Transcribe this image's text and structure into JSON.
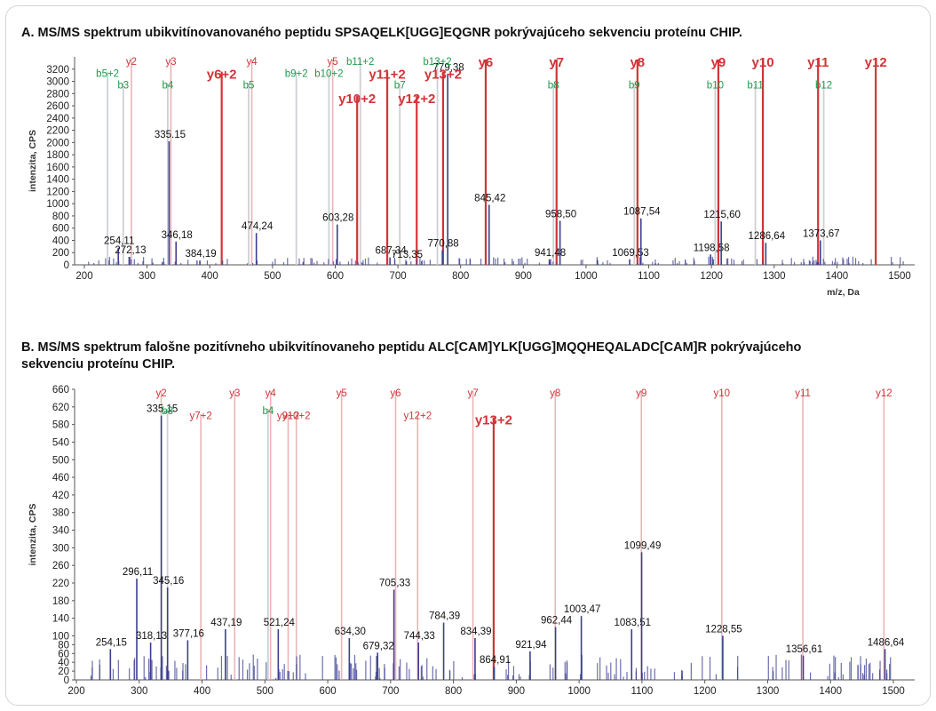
{
  "panel_a_title": "A. MS/MS spektrum ubikvitínovanovaného peptidu SPSAQELK[UGG]EQGNR pokrývajúceho sekvenciu proteínu CHIP.",
  "panel_b_title_line1": "B. MS/MS spektrum falošne pozitívneho ubikvitínovaneho peptidu ALC[CAM]YLK[UGG]MQQHEQALADC[CAM]R pokrývajúceho",
  "panel_b_title_line2": "sekvenciu proteínu CHIP.",
  "colors": {
    "ion_y": "#d13438",
    "ion_b": "#1f9a4a",
    "spectrum": "#3b3f8f",
    "axis": "#555555"
  },
  "chart_data": [
    {
      "type": "bar",
      "title": "A. MS/MS spektrum ubikvitínovanovaného peptidu SPSAQELK[UGG]EQGNR pokrývajúceho sekvenciu proteínu CHIP.",
      "xlabel": "m/z, Da",
      "ylabel": "intenzita, CPS",
      "xlim": [
        180,
        1520
      ],
      "ylim": [
        0,
        3400
      ],
      "xticks": [
        200,
        300,
        400,
        500,
        600,
        700,
        800,
        900,
        1000,
        1100,
        1200,
        1300,
        1400,
        1500
      ],
      "yticks": [
        0,
        200,
        400,
        600,
        800,
        1000,
        1200,
        1400,
        1600,
        1800,
        2000,
        2200,
        2400,
        2600,
        2800,
        3000,
        3200
      ],
      "fragment_ions": [
        {
          "label": "b5+2",
          "mz": 237,
          "ion": "b",
          "bold": false,
          "labelY": 3130
        },
        {
          "label": "b3",
          "mz": 262,
          "ion": "b",
          "bold": false,
          "labelY": 2940
        },
        {
          "label": "y2",
          "mz": 275,
          "ion": "y",
          "bold": false,
          "labelY": 3330
        },
        {
          "label": "b4",
          "mz": 333,
          "ion": "b",
          "bold": false,
          "labelY": 2940
        },
        {
          "label": "y3",
          "mz": 338,
          "ion": "y",
          "bold": false,
          "labelY": 3330
        },
        {
          "label": "y6+2",
          "mz": 419,
          "ion": "y",
          "bold": true,
          "labelY": 3130
        },
        {
          "label": "b5",
          "mz": 462,
          "ion": "b",
          "bold": false,
          "labelY": 2940
        },
        {
          "label": "y4",
          "mz": 467,
          "ion": "y",
          "bold": false,
          "labelY": 3330
        },
        {
          "label": "b9+2",
          "mz": 538,
          "ion": "b",
          "bold": false,
          "labelY": 3130
        },
        {
          "label": "b10+2",
          "mz": 590,
          "ion": "b",
          "bold": false,
          "labelY": 3130
        },
        {
          "label": "y5",
          "mz": 596,
          "ion": "y",
          "bold": false,
          "labelY": 3330
        },
        {
          "label": "b11+2",
          "mz": 640,
          "ion": "b",
          "bold": false,
          "labelY": 3330
        },
        {
          "label": "y10+2",
          "mz": 635,
          "ion": "y",
          "bold": true,
          "labelY": 2730
        },
        {
          "label": "y11+2",
          "mz": 683,
          "ion": "y",
          "bold": true,
          "labelY": 3130
        },
        {
          "label": "b7",
          "mz": 703,
          "ion": "b",
          "bold": false,
          "labelY": 2940
        },
        {
          "label": "y12+2",
          "mz": 730,
          "ion": "y",
          "bold": true,
          "labelY": 2730
        },
        {
          "label": "b13+2",
          "mz": 763,
          "ion": "b",
          "bold": false,
          "labelY": 3330
        },
        {
          "label": "y13+2",
          "mz": 772,
          "ion": "y",
          "bold": true,
          "labelY": 3130
        },
        {
          "label": "y6",
          "mz": 840,
          "ion": "y",
          "bold": true,
          "labelY": 3330
        },
        {
          "label": "b8",
          "mz": 948,
          "ion": "b",
          "bold": false,
          "labelY": 2940
        },
        {
          "label": "y7",
          "mz": 953,
          "ion": "y",
          "bold": true,
          "labelY": 3330
        },
        {
          "label": "b9",
          "mz": 1077,
          "ion": "b",
          "bold": false,
          "labelY": 2940
        },
        {
          "label": "y8",
          "mz": 1082,
          "ion": "y",
          "bold": true,
          "labelY": 3330
        },
        {
          "label": "b10",
          "mz": 1206,
          "ion": "b",
          "bold": false,
          "labelY": 2940
        },
        {
          "label": "y9",
          "mz": 1211,
          "ion": "y",
          "bold": true,
          "labelY": 3330
        },
        {
          "label": "y10",
          "mz": 1282,
          "ion": "y",
          "bold": true,
          "labelY": 3330
        },
        {
          "label": "b11",
          "mz": 1270,
          "ion": "b",
          "bold": false,
          "labelY": 2940
        },
        {
          "label": "b12",
          "mz": 1379,
          "ion": "b",
          "bold": false,
          "labelY": 2940
        },
        {
          "label": "y11",
          "mz": 1370,
          "ion": "y",
          "bold": true,
          "labelY": 3330
        },
        {
          "label": "y12",
          "mz": 1462,
          "ion": "y",
          "bold": true,
          "labelY": 3330
        }
      ],
      "peaks": [
        {
          "label": "335.15",
          "mz": 335.15,
          "i": 2020
        },
        {
          "label": "254,11",
          "mz": 254.11,
          "i": 280
        },
        {
          "label": "272,13",
          "mz": 272.13,
          "i": 130
        },
        {
          "label": "346,18",
          "mz": 346.18,
          "i": 380
        },
        {
          "label": "384,19",
          "mz": 384.19,
          "i": 70
        },
        {
          "label": "474,24",
          "mz": 474.24,
          "i": 520
        },
        {
          "label": "603,28",
          "mz": 603.28,
          "i": 660
        },
        {
          "label": "687,34",
          "mz": 687.34,
          "i": 120
        },
        {
          "label": "713,35",
          "mz": 713.35,
          "i": 60
        },
        {
          "label": "770,88",
          "mz": 770.88,
          "i": 240
        },
        {
          "label": "779,38",
          "mz": 779.38,
          "i": 3120
        },
        {
          "label": "845,42",
          "mz": 845.42,
          "i": 980
        },
        {
          "label": "941,48",
          "mz": 941.48,
          "i": 90
        },
        {
          "label": "958,50",
          "mz": 958.5,
          "i": 720
        },
        {
          "label": "1069,53",
          "mz": 1069.53,
          "i": 90
        },
        {
          "label": "1087,54",
          "mz": 1087.54,
          "i": 760
        },
        {
          "label": "1198,58",
          "mz": 1198.58,
          "i": 170
        },
        {
          "label": "1215,60",
          "mz": 1215.6,
          "i": 710
        },
        {
          "label": "1286,64",
          "mz": 1286.64,
          "i": 360
        },
        {
          "label": "1373,67",
          "mz": 1373.67,
          "i": 400
        }
      ]
    },
    {
      "type": "bar",
      "title": "B. MS/MS spektrum falošne pozitívneho ubikvitínovaneho peptidu ALC[CAM]YLK[UGG]MQQHEQALADC[CAM]R pokrývajúceho sekvenciu proteínu CHIP.",
      "xlabel": "",
      "ylabel": "intenzita, CPS",
      "xlim": [
        200,
        1520
      ],
      "ylim": [
        0,
        660
      ],
      "xticks": [
        200,
        300,
        400,
        500,
        600,
        700,
        800,
        900,
        1000,
        1100,
        1200,
        1300,
        1400,
        1500
      ],
      "yticks": [
        0,
        20,
        40,
        60,
        80,
        100,
        140,
        180,
        220,
        260,
        300,
        340,
        380,
        420,
        460,
        500,
        540,
        580,
        620,
        660
      ],
      "fragment_ions": [
        {
          "label": "y2",
          "mz": 335,
          "ion": "y",
          "bold": false,
          "labelY": 652
        },
        {
          "label": "b3",
          "mz": 345,
          "ion": "b",
          "bold": false,
          "labelY": 612
        },
        {
          "label": "y7+2",
          "mz": 398,
          "ion": "y",
          "bold": false,
          "labelY": 600
        },
        {
          "label": "y3",
          "mz": 452,
          "ion": "y",
          "bold": false,
          "labelY": 652
        },
        {
          "label": "y4",
          "mz": 509,
          "ion": "y",
          "bold": false,
          "labelY": 652
        },
        {
          "label": "b4",
          "mz": 505,
          "ion": "b",
          "bold": false,
          "labelY": 612
        },
        {
          "label": "y9+2",
          "mz": 537,
          "ion": "y",
          "bold": false,
          "labelY": 600
        },
        {
          "label": "y10+2",
          "mz": 550,
          "ion": "y",
          "bold": false,
          "labelY": 600
        },
        {
          "label": "y5",
          "mz": 622,
          "ion": "y",
          "bold": false,
          "labelY": 652
        },
        {
          "label": "y6",
          "mz": 708,
          "ion": "y",
          "bold": false,
          "labelY": 652
        },
        {
          "label": "y12+2",
          "mz": 743,
          "ion": "y",
          "bold": false,
          "labelY": 600
        },
        {
          "label": "y7",
          "mz": 831,
          "ion": "y",
          "bold": false,
          "labelY": 652
        },
        {
          "label": "y13+2",
          "mz": 864,
          "ion": "y",
          "bold": true,
          "labelY": 592
        },
        {
          "label": "y8",
          "mz": 962,
          "ion": "y",
          "bold": false,
          "labelY": 652
        },
        {
          "label": "y9",
          "mz": 1099,
          "ion": "y",
          "bold": false,
          "labelY": 652
        },
        {
          "label": "y10",
          "mz": 1227,
          "ion": "y",
          "bold": false,
          "labelY": 652
        },
        {
          "label": "y11",
          "mz": 1356,
          "ion": "y",
          "bold": false,
          "labelY": 652
        },
        {
          "label": "y12",
          "mz": 1485,
          "ion": "y",
          "bold": false,
          "labelY": 652
        }
      ],
      "peaks": [
        {
          "label": "335,15",
          "mz": 335.15,
          "i": 600
        },
        {
          "label": "296,11",
          "mz": 296.11,
          "i": 230
        },
        {
          "label": "345,16",
          "mz": 345.16,
          "i": 210
        },
        {
          "label": "254,15",
          "mz": 254.15,
          "i": 70
        },
        {
          "label": "318,13",
          "mz": 318.13,
          "i": 85
        },
        {
          "label": "377,16",
          "mz": 377.16,
          "i": 90
        },
        {
          "label": "437,19",
          "mz": 437.19,
          "i": 115
        },
        {
          "label": "521,24",
          "mz": 521.24,
          "i": 115
        },
        {
          "label": "634,30",
          "mz": 634.3,
          "i": 95
        },
        {
          "label": "679,32",
          "mz": 679.32,
          "i": 62
        },
        {
          "label": "705,33",
          "mz": 705.33,
          "i": 205
        },
        {
          "label": "744,33",
          "mz": 744.33,
          "i": 85
        },
        {
          "label": "784,39",
          "mz": 784.39,
          "i": 130
        },
        {
          "label": "834,39",
          "mz": 834.39,
          "i": 95
        },
        {
          "label": "864,91",
          "mz": 864.91,
          "i": 30
        },
        {
          "label": "921,94",
          "mz": 921.94,
          "i": 65
        },
        {
          "label": "962,44",
          "mz": 962.44,
          "i": 120
        },
        {
          "label": "1003,47",
          "mz": 1003.47,
          "i": 145
        },
        {
          "label": "1083,51",
          "mz": 1083.51,
          "i": 115
        },
        {
          "label": "1099,49",
          "mz": 1099.49,
          "i": 290
        },
        {
          "label": "1228,55",
          "mz": 1228.55,
          "i": 100
        },
        {
          "label": "1356,61",
          "mz": 1356.61,
          "i": 55
        },
        {
          "label": "1486,64",
          "mz": 1486.64,
          "i": 70
        }
      ]
    }
  ]
}
